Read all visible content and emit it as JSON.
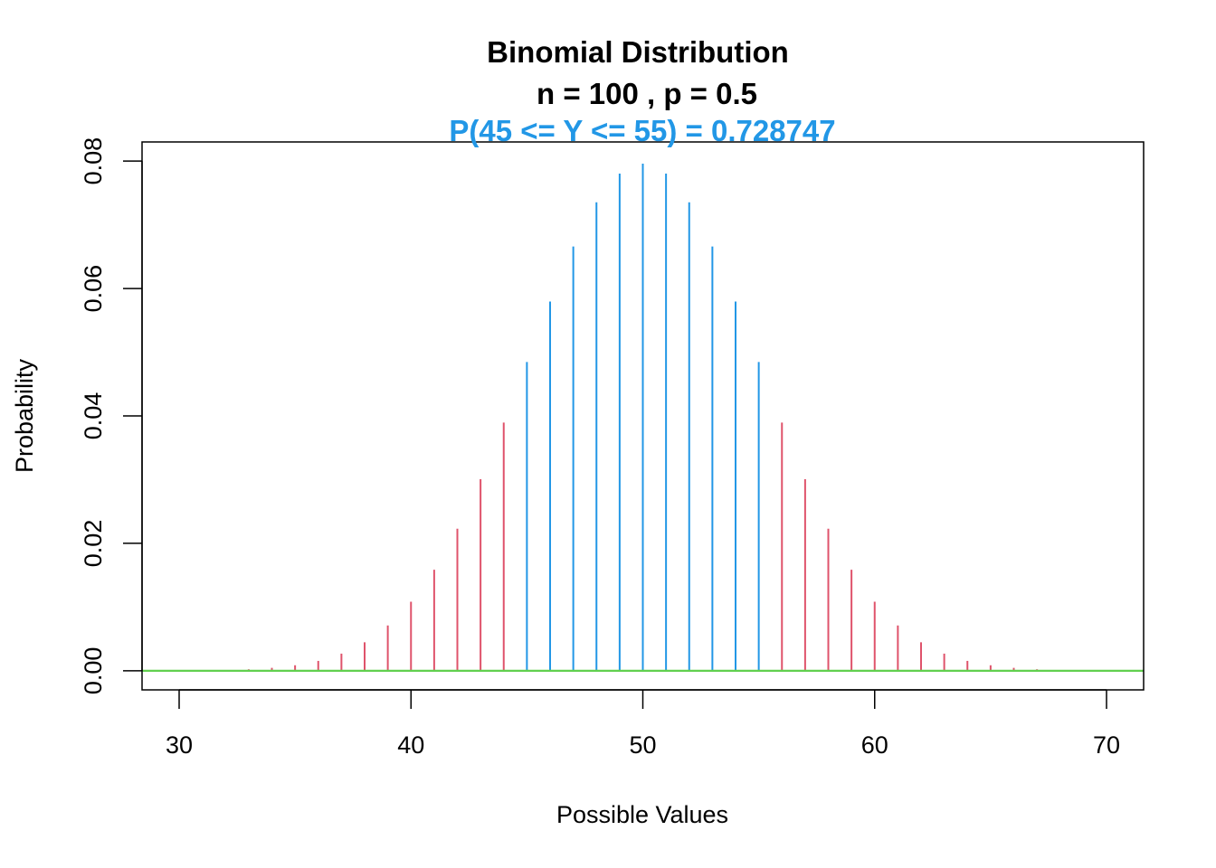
{
  "chart_data": {
    "type": "bar",
    "title": "Binomial Distribution",
    "subtitle": "n = 100 , p = 0.5",
    "annotation": "P(45 <= Y <= 55) = 0.728747",
    "xlabel": "Possible Values",
    "ylabel": "Probability",
    "xlim": [
      28.4,
      71.6
    ],
    "ylim": [
      -0.003,
      0.083
    ],
    "x_ticks": [
      30,
      40,
      50,
      60,
      70
    ],
    "x_tick_labels": [
      "30",
      "40",
      "50",
      "60",
      "70"
    ],
    "y_ticks": [
      0,
      0.02,
      0.04,
      0.06,
      0.08
    ],
    "y_tick_labels": [
      "0.00",
      "0.02",
      "0.04",
      "0.06",
      "0.08"
    ],
    "grid": false,
    "highlight_range": [
      45,
      55
    ],
    "colors": {
      "inside": "#2297E6",
      "outside": "#DF536B",
      "baseline": "#61D04F",
      "title": "#000000",
      "annotation": "#2297E6"
    },
    "x": [
      30,
      31,
      32,
      33,
      34,
      35,
      36,
      37,
      38,
      39,
      40,
      41,
      42,
      43,
      44,
      45,
      46,
      47,
      48,
      49,
      50,
      51,
      52,
      53,
      54,
      55,
      56,
      57,
      58,
      59,
      60,
      61,
      62,
      63,
      64,
      65,
      66,
      67,
      68,
      69,
      70
    ],
    "values": [
      2.32e-05,
      5.41e-05,
      0.000114,
      0.000232,
      0.000458,
      0.000864,
      0.00155,
      0.00269,
      0.00447,
      0.00711,
      0.01084,
      0.01586,
      0.02229,
      0.03007,
      0.03895,
      0.04847,
      0.05796,
      0.06659,
      0.07353,
      0.07803,
      0.07959,
      0.07803,
      0.07353,
      0.06659,
      0.05796,
      0.04847,
      0.03895,
      0.03007,
      0.02229,
      0.01586,
      0.01084,
      0.00711,
      0.00447,
      0.00269,
      0.00155,
      0.000864,
      0.000458,
      0.000232,
      0.000114,
      5.41e-05,
      2.32e-05
    ]
  }
}
